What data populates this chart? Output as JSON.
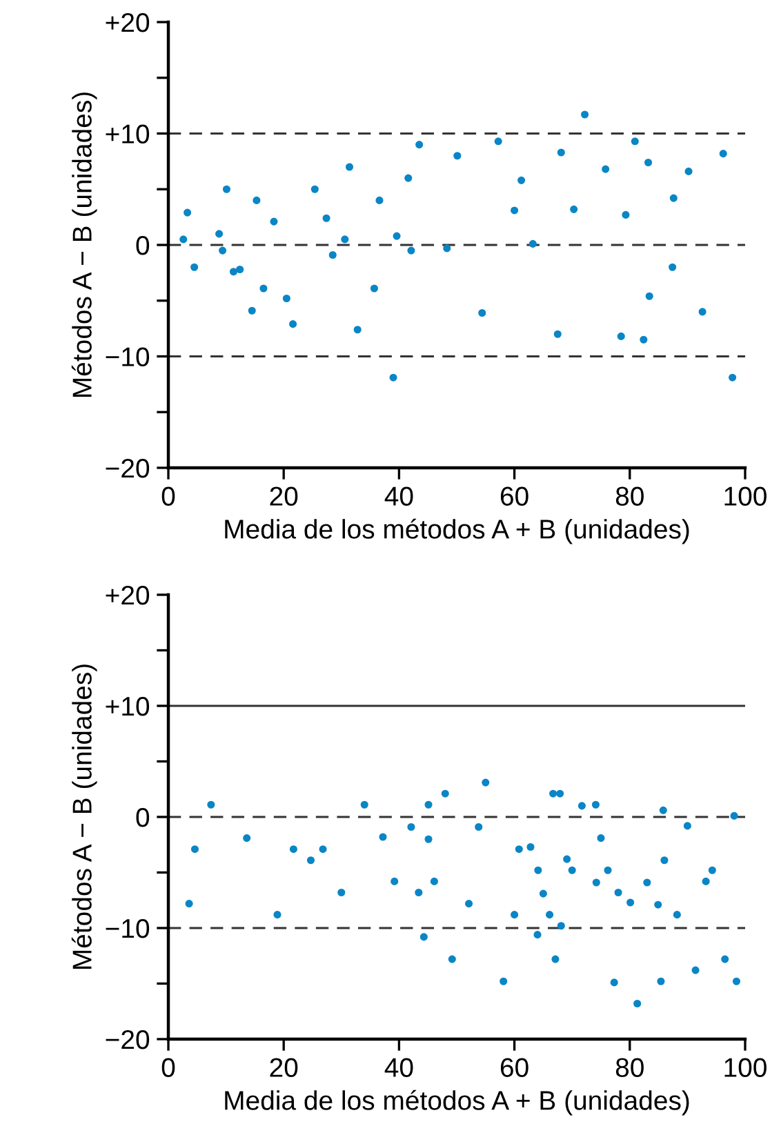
{
  "chart_data": [
    {
      "type": "scatter",
      "xlabel": "Media de los métodos A + B (unidades)",
      "ylabel": "Métodos A − B (unidades)",
      "xlim": [
        0,
        100
      ],
      "ylim": [
        -20,
        20
      ],
      "xticks": [
        0,
        20,
        40,
        60,
        80,
        100
      ],
      "yticks": [
        {
          "value": 20,
          "label": "+20"
        },
        {
          "value": 15,
          "label": null
        },
        {
          "value": 10,
          "label": "+10"
        },
        {
          "value": 5,
          "label": null
        },
        0,
        {
          "value": -5,
          "label": null
        },
        {
          "value": -10,
          "label": "−10"
        },
        {
          "value": -15,
          "label": null
        },
        {
          "value": -20,
          "label": "−20"
        }
      ],
      "marker": "circle",
      "ref_lines": [
        {
          "axis": "y",
          "value": 10,
          "color": "#333333",
          "line_style": "dashed"
        },
        {
          "axis": "y",
          "value": 0,
          "color": "#333333",
          "line_style": "dashed"
        },
        {
          "axis": "y",
          "value": -10,
          "color": "#333333",
          "line_style": "dashed"
        }
      ],
      "series": [
        {
          "color": "#0a86c6",
          "x": [
            2.6,
            3.3,
            4.5,
            8.8,
            9.4,
            10.1,
            11.3,
            12.4,
            14.5,
            15.3,
            16.5,
            18.3,
            20.5,
            21.6,
            25.4,
            27.4,
            28.5,
            30.6,
            31.4,
            32.8,
            35.7,
            36.6,
            39.0,
            39.6,
            41.6,
            42.1,
            43.5,
            48.3,
            50.1,
            54.4,
            57.2,
            60.0,
            61.2,
            63.2,
            67.5,
            68.1,
            70.3,
            72.2,
            75.8,
            78.5,
            79.3,
            80.9,
            82.4,
            83.2,
            83.4,
            87.4,
            87.6,
            90.2,
            92.6,
            96.2,
            97.8
          ],
          "values": [
            0.5,
            2.9,
            -2.0,
            1.0,
            -0.5,
            5.0,
            -2.4,
            -2.2,
            -5.9,
            4.0,
            -3.9,
            2.1,
            -4.8,
            -7.1,
            5.0,
            2.4,
            -0.9,
            0.5,
            7.0,
            -7.6,
            -3.9,
            4.0,
            -11.9,
            0.8,
            6.0,
            -0.5,
            9.0,
            -0.3,
            8.0,
            -6.1,
            9.3,
            3.1,
            5.8,
            0.1,
            -8.0,
            8.3,
            3.2,
            11.7,
            6.8,
            -8.2,
            2.7,
            9.3,
            -8.5,
            7.4,
            -4.6,
            -2.0,
            4.2,
            6.6,
            -6.0,
            8.2,
            -11.9
          ]
        }
      ]
    },
    {
      "type": "scatter",
      "xlabel": "Media de los métodos A + B (unidades)",
      "ylabel": "Métodos A − B (unidades)",
      "xlim": [
        0,
        100
      ],
      "ylim": [
        -20,
        20
      ],
      "xticks": [
        0,
        20,
        40,
        60,
        80,
        100
      ],
      "yticks": [
        {
          "value": 20,
          "label": "+20"
        },
        {
          "value": 15,
          "label": null
        },
        {
          "value": 10,
          "label": "+10"
        },
        {
          "value": 5,
          "label": null
        },
        0,
        {
          "value": -5,
          "label": null
        },
        {
          "value": -10,
          "label": "−10"
        },
        {
          "value": -15,
          "label": null
        },
        {
          "value": -20,
          "label": "−20"
        }
      ],
      "marker": "circle",
      "ref_lines": [
        {
          "axis": "y",
          "value": 10,
          "color": "#333333",
          "line_style": "solid"
        },
        {
          "axis": "y",
          "value": 0,
          "color": "#333333",
          "line_style": "dashed"
        },
        {
          "axis": "y",
          "value": -10,
          "color": "#333333",
          "line_style": "dashed"
        }
      ],
      "series": [
        {
          "color": "#0a86c6",
          "x": [
            3.6,
            4.6,
            7.4,
            13.6,
            18.9,
            21.7,
            24.7,
            26.8,
            30.0,
            34.0,
            37.2,
            39.2,
            42.1,
            43.4,
            44.3,
            45.1,
            45.1,
            46.1,
            48.0,
            49.2,
            52.1,
            53.8,
            55.0,
            58.1,
            60.0,
            60.8,
            62.8,
            64.0,
            64.1,
            65.0,
            66.1,
            66.7,
            67.1,
            67.9,
            68.1,
            69.1,
            70.0,
            71.7,
            74.1,
            74.2,
            75.0,
            76.2,
            77.3,
            78.0,
            80.1,
            81.3,
            83.0,
            84.9,
            85.4,
            85.8,
            86.0,
            88.2,
            90.0,
            91.4,
            93.2,
            94.3,
            96.5,
            98.1,
            98.5
          ],
          "values": [
            -7.8,
            -2.9,
            1.1,
            -1.9,
            -8.8,
            -2.9,
            -3.9,
            -2.9,
            -6.8,
            1.1,
            -1.8,
            -5.8,
            -0.9,
            -6.8,
            -10.8,
            1.1,
            -2.0,
            -5.8,
            2.1,
            -12.8,
            -7.8,
            -0.9,
            3.1,
            -14.8,
            -8.8,
            -2.9,
            -2.7,
            -10.6,
            -4.8,
            -6.9,
            -8.8,
            2.1,
            -12.8,
            2.1,
            -9.8,
            -3.8,
            -4.8,
            1.0,
            1.1,
            -5.9,
            -1.9,
            -4.8,
            -14.9,
            -6.8,
            -7.7,
            -16.8,
            -5.9,
            -7.9,
            -14.8,
            0.6,
            -3.9,
            -8.8,
            -0.8,
            -13.8,
            -5.8,
            -4.8,
            -12.8,
            0.1,
            -14.8
          ]
        }
      ]
    }
  ]
}
